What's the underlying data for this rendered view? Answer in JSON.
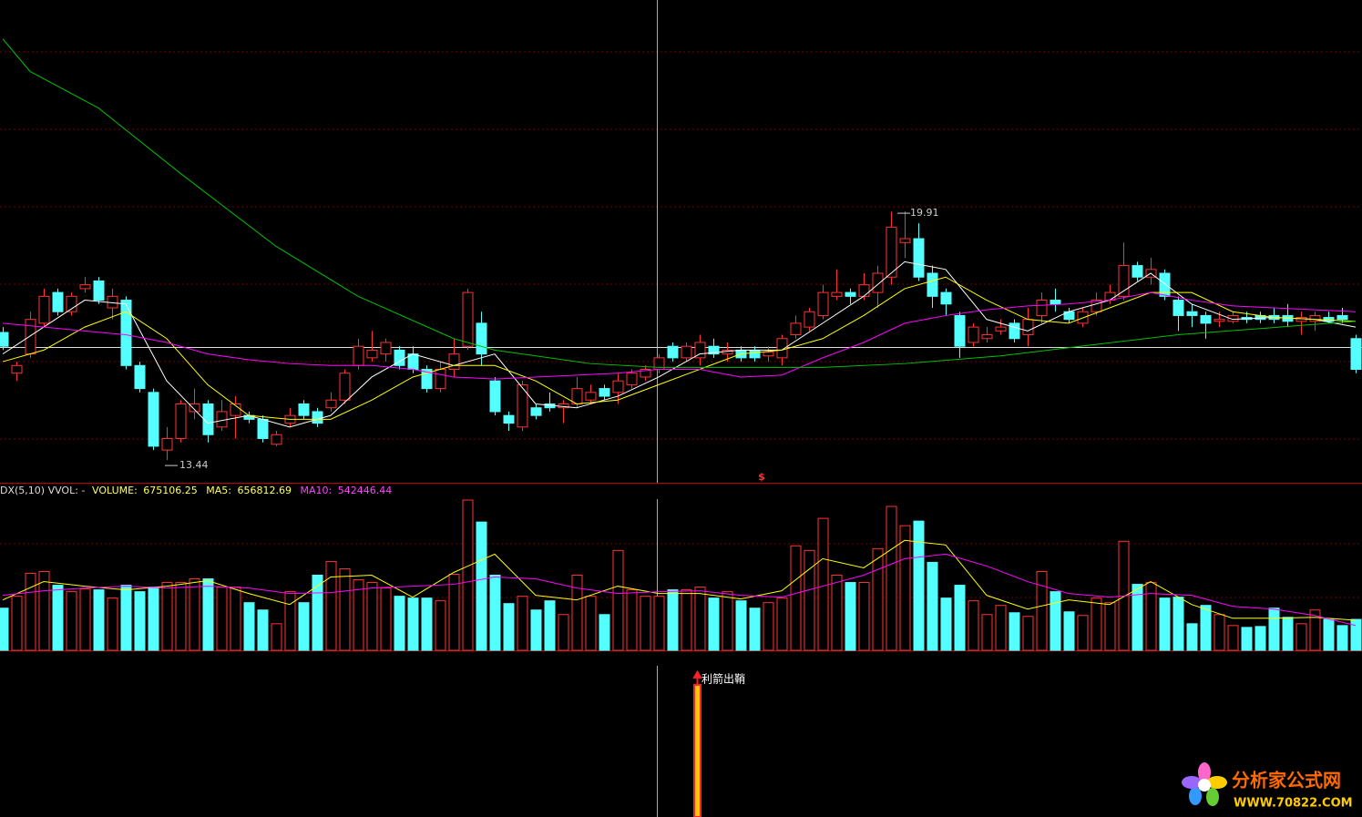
{
  "chart_data": {
    "type": "candlestick",
    "up_color": "#ff3232",
    "down_color": "#54ffff",
    "ylim": [
      12.85,
      25.41
    ],
    "ohlc": [
      [
        16.76,
        16.9,
        16.3,
        16.4
      ],
      [
        15.7,
        16.0,
        15.5,
        15.9
      ],
      [
        16.2,
        17.3,
        16.1,
        17.1
      ],
      [
        17.0,
        17.9,
        16.9,
        17.7
      ],
      [
        17.8,
        17.9,
        17.2,
        17.3
      ],
      [
        17.3,
        17.8,
        17.2,
        17.7
      ],
      [
        17.9,
        18.2,
        17.8,
        18.0
      ],
      [
        18.1,
        18.2,
        17.5,
        17.6
      ],
      [
        17.4,
        17.9,
        17.1,
        17.7
      ],
      [
        17.6,
        17.7,
        15.8,
        15.9
      ],
      [
        15.9,
        16.0,
        15.2,
        15.3
      ],
      [
        15.2,
        15.3,
        13.7,
        13.8
      ],
      [
        13.7,
        14.3,
        13.44,
        14.0
      ],
      [
        14.0,
        15.0,
        13.9,
        14.9
      ],
      [
        14.7,
        15.3,
        14.5,
        14.9
      ],
      [
        14.9,
        15.0,
        13.9,
        14.1
      ],
      [
        14.3,
        15.0,
        14.2,
        14.7
      ],
      [
        14.6,
        15.1,
        14.0,
        14.9
      ],
      [
        14.6,
        14.7,
        14.4,
        14.5
      ],
      [
        14.5,
        14.6,
        13.9,
        14.0
      ],
      [
        13.85,
        14.2,
        13.8,
        14.1
      ],
      [
        14.4,
        14.8,
        14.3,
        14.6
      ],
      [
        14.9,
        15.0,
        14.5,
        14.6
      ],
      [
        14.7,
        14.8,
        14.3,
        14.4
      ],
      [
        14.8,
        15.2,
        14.7,
        15.0
      ],
      [
        15.0,
        15.8,
        14.9,
        15.7
      ],
      [
        15.9,
        16.6,
        15.8,
        16.4
      ],
      [
        16.1,
        16.8,
        16.0,
        16.3
      ],
      [
        16.2,
        16.6,
        16.0,
        16.5
      ],
      [
        16.3,
        16.4,
        15.8,
        15.9
      ],
      [
        16.2,
        16.4,
        15.7,
        15.8
      ],
      [
        15.8,
        15.9,
        15.2,
        15.3
      ],
      [
        15.3,
        16.0,
        15.2,
        15.8
      ],
      [
        15.8,
        16.6,
        15.6,
        16.2
      ],
      [
        16.4,
        17.9,
        16.3,
        17.8
      ],
      [
        17.0,
        17.3,
        15.9,
        16.2
      ],
      [
        15.5,
        15.6,
        14.6,
        14.7
      ],
      [
        14.6,
        14.7,
        14.2,
        14.4
      ],
      [
        14.3,
        15.5,
        14.2,
        15.4
      ],
      [
        14.8,
        14.9,
        14.5,
        14.6
      ],
      [
        14.9,
        15.2,
        14.7,
        14.8
      ],
      [
        14.8,
        15.0,
        14.4,
        14.9
      ],
      [
        14.9,
        15.6,
        14.8,
        15.3
      ],
      [
        15.0,
        15.4,
        14.9,
        15.2
      ],
      [
        15.3,
        15.4,
        15.0,
        15.1
      ],
      [
        15.2,
        15.7,
        14.9,
        15.5
      ],
      [
        15.4,
        15.8,
        15.3,
        15.7
      ],
      [
        15.6,
        15.9,
        15.5,
        15.8
      ],
      [
        15.8,
        16.2,
        15.7,
        16.1
      ],
      [
        16.4,
        16.5,
        16.0,
        16.1
      ],
      [
        16.1,
        16.5,
        16.0,
        16.4
      ],
      [
        16.1,
        16.7,
        15.9,
        16.5
      ],
      [
        16.4,
        16.6,
        16.1,
        16.2
      ],
      [
        16.2,
        16.5,
        16.0,
        16.3
      ],
      [
        16.3,
        16.4,
        16.0,
        16.1
      ],
      [
        16.3,
        16.4,
        16.0,
        16.1
      ],
      [
        16.15,
        16.4,
        16.0,
        16.25
      ],
      [
        16.1,
        16.7,
        15.9,
        16.6
      ],
      [
        16.7,
        17.2,
        16.6,
        17.0
      ],
      [
        16.9,
        17.4,
        16.8,
        17.3
      ],
      [
        17.2,
        18.0,
        17.1,
        17.8
      ],
      [
        17.7,
        18.4,
        17.6,
        17.8
      ],
      [
        17.8,
        17.9,
        17.5,
        17.7
      ],
      [
        17.7,
        18.3,
        17.6,
        18.0
      ],
      [
        17.8,
        18.5,
        17.4,
        18.3
      ],
      [
        18.2,
        19.9,
        18.0,
        19.5
      ],
      [
        19.1,
        19.91,
        18.7,
        19.2
      ],
      [
        19.2,
        19.6,
        18.1,
        18.2
      ],
      [
        18.3,
        18.5,
        17.4,
        17.7
      ],
      [
        17.8,
        17.9,
        17.2,
        17.5
      ],
      [
        17.2,
        17.3,
        16.1,
        16.4
      ],
      [
        16.5,
        17.0,
        16.4,
        16.9
      ],
      [
        16.6,
        16.9,
        16.5,
        16.7
      ],
      [
        16.8,
        17.1,
        16.7,
        16.9
      ],
      [
        17.0,
        17.1,
        16.5,
        16.6
      ],
      [
        16.7,
        17.4,
        16.4,
        17.1
      ],
      [
        17.2,
        17.8,
        17.0,
        17.6
      ],
      [
        17.6,
        17.9,
        17.3,
        17.5
      ],
      [
        17.3,
        17.4,
        17.0,
        17.1
      ],
      [
        17.0,
        17.4,
        16.9,
        17.3
      ],
      [
        17.3,
        17.8,
        17.2,
        17.6
      ],
      [
        17.6,
        18.0,
        17.5,
        17.8
      ],
      [
        17.7,
        19.1,
        17.6,
        18.5
      ],
      [
        18.5,
        18.6,
        18.1,
        18.2
      ],
      [
        18.2,
        18.7,
        18.0,
        18.4
      ],
      [
        18.3,
        18.4,
        17.6,
        17.7
      ],
      [
        17.6,
        17.7,
        16.8,
        17.2
      ],
      [
        17.3,
        17.5,
        16.9,
        17.2
      ],
      [
        17.2,
        17.3,
        16.6,
        17.0
      ],
      [
        17.05,
        17.3,
        16.9,
        17.1
      ],
      [
        17.05,
        17.3,
        17.0,
        17.2
      ],
      [
        17.15,
        17.3,
        17.0,
        17.1
      ],
      [
        17.2,
        17.3,
        17.0,
        17.1
      ],
      [
        17.2,
        17.4,
        17.0,
        17.1
      ],
      [
        17.2,
        17.5,
        16.9,
        17.05
      ],
      [
        17.05,
        17.3,
        16.7,
        17.15
      ],
      [
        17.05,
        17.3,
        16.8,
        17.2
      ],
      [
        17.15,
        17.3,
        17.0,
        17.05
      ],
      [
        17.2,
        17.4,
        17.0,
        17.1
      ],
      [
        16.6,
        16.7,
        15.7,
        15.8
      ]
    ],
    "lines": [
      {
        "color": "#ffffff",
        "x": [
          0,
          3,
          6,
          9,
          12,
          15,
          18,
          21,
          24,
          27,
          30,
          33,
          36,
          39,
          42,
          45,
          48,
          51,
          54,
          57,
          60,
          63,
          66,
          69,
          72,
          75,
          78,
          81,
          84,
          87,
          90,
          93,
          96,
          99
        ],
        "values": [
          16.2,
          16.9,
          17.6,
          17.5,
          15.5,
          14.4,
          14.6,
          14.3,
          14.6,
          15.6,
          16.2,
          15.9,
          16.2,
          14.9,
          14.8,
          15.1,
          15.6,
          16.2,
          16.3,
          16.3,
          17.0,
          17.7,
          18.6,
          18.4,
          17.1,
          16.8,
          17.3,
          17.6,
          18.3,
          17.5,
          17.1,
          17.15,
          17.1,
          16.9
        ]
      },
      {
        "color": "#ffff00",
        "x": [
          0,
          3,
          6,
          9,
          12,
          15,
          18,
          21,
          24,
          27,
          30,
          33,
          36,
          39,
          42,
          45,
          48,
          51,
          54,
          57,
          60,
          63,
          66,
          69,
          72,
          75,
          78,
          81,
          84,
          87,
          90,
          93,
          96,
          99
        ],
        "values": [
          16.0,
          16.3,
          16.9,
          17.3,
          16.6,
          15.4,
          14.6,
          14.5,
          14.5,
          15.0,
          15.6,
          15.9,
          15.9,
          15.5,
          14.9,
          15.0,
          15.4,
          15.8,
          16.2,
          16.3,
          16.6,
          17.2,
          17.9,
          18.2,
          17.6,
          17.1,
          17.0,
          17.4,
          17.8,
          17.8,
          17.3,
          17.15,
          17.1,
          17.05
        ]
      },
      {
        "color": "#ff00ff",
        "x": [
          0,
          3,
          6,
          9,
          12,
          15,
          18,
          21,
          24,
          27,
          30,
          33,
          36,
          39,
          42,
          45,
          48,
          51,
          54,
          57,
          60,
          63,
          66,
          69,
          72,
          75,
          78,
          81,
          84,
          87,
          90,
          93,
          96,
          99
        ],
        "values": [
          17.0,
          16.9,
          16.8,
          16.7,
          16.5,
          16.2,
          16.05,
          15.95,
          15.9,
          15.9,
          15.8,
          15.6,
          15.55,
          15.6,
          15.65,
          15.7,
          15.8,
          15.8,
          15.6,
          15.65,
          16.1,
          16.5,
          17.0,
          17.2,
          17.35,
          17.45,
          17.5,
          17.6,
          17.8,
          17.6,
          17.45,
          17.4,
          17.35,
          17.3
        ]
      },
      {
        "color": "#00c000",
        "x": [
          0,
          2,
          7,
          13,
          20,
          26,
          33,
          36,
          43,
          48,
          60,
          66,
          73,
          80,
          86,
          99
        ],
        "values": [
          24.4,
          23.55,
          22.6,
          20.9,
          19.0,
          17.7,
          16.6,
          16.3,
          15.95,
          15.85,
          15.85,
          15.95,
          16.15,
          16.45,
          16.7,
          17.05
        ]
      }
    ],
    "marker": "$",
    "volume": {
      "header": "DX(5,10) VVOL: -",
      "labels": [
        "VOLUME:",
        "MA5:",
        "MA10:"
      ],
      "ylim": [
        0,
        3300000
      ],
      "values": [
        920000,
        1180000,
        1680000,
        1720000,
        1420000,
        1280000,
        1340000,
        1320000,
        1140000,
        1420000,
        1280000,
        1380000,
        1480000,
        1480000,
        1560000,
        1560000,
        1380000,
        1380000,
        1040000,
        880000,
        580000,
        1280000,
        1040000,
        1640000,
        1940000,
        1780000,
        1540000,
        1480000,
        1360000,
        1180000,
        1140000,
        1140000,
        1080000,
        1660000,
        3280000,
        2800000,
        1640000,
        1020000,
        1180000,
        880000,
        1080000,
        780000,
        1640000,
        1180000,
        780000,
        2180000,
        1320000,
        1180000,
        1180000,
        1320000,
        1320000,
        1380000,
        1140000,
        1280000,
        1080000,
        920000,
        1040000,
        1140000,
        2280000,
        2180000,
        2880000,
        1640000,
        1480000,
        1480000,
        2220000,
        3140000,
        2720000,
        2820000,
        1920000,
        1140000,
        1420000,
        1080000,
        780000,
        980000,
        820000,
        740000,
        1720000,
        1280000,
        840000,
        760000,
        1140000,
        1040000,
        2380000,
        1440000,
        1480000,
        1140000,
        1160000,
        580000,
        980000,
        780000,
        540000,
        500000,
        520000,
        920000,
        720000,
        580000,
        880000,
        680000,
        540000,
        675106.25
      ],
      "lines": [
        {
          "color": "#ffff00",
          "x": [
            0,
            3,
            6,
            9,
            12,
            15,
            18,
            21,
            24,
            27,
            30,
            33,
            36,
            39,
            42,
            45,
            48,
            51,
            54,
            57,
            60,
            63,
            66,
            69,
            72,
            75,
            78,
            81,
            84,
            87,
            90,
            93,
            96,
            99
          ],
          "values": [
            1100000,
            1500000,
            1400000,
            1320000,
            1400000,
            1520000,
            1240000,
            1000000,
            1600000,
            1640000,
            1160000,
            1700000,
            2100000,
            1200000,
            1100000,
            1400000,
            1240000,
            1240000,
            1120000,
            1300000,
            2000000,
            1800000,
            2400000,
            2300000,
            1200000,
            900000,
            1100000,
            1000000,
            1500000,
            1000000,
            700000,
            700000,
            720000,
            656812.69
          ]
        },
        {
          "color": "#ff00ff",
          "x": [
            0,
            3,
            6,
            9,
            12,
            15,
            18,
            21,
            24,
            27,
            30,
            33,
            36,
            39,
            42,
            45,
            48,
            51,
            54,
            57,
            60,
            63,
            66,
            69,
            72,
            75,
            78,
            81,
            84,
            87,
            90,
            93,
            96,
            99
          ],
          "values": [
            1200000,
            1300000,
            1360000,
            1400000,
            1360000,
            1400000,
            1360000,
            1240000,
            1260000,
            1360000,
            1400000,
            1440000,
            1600000,
            1560000,
            1360000,
            1240000,
            1280000,
            1300000,
            1200000,
            1160000,
            1400000,
            1640000,
            2000000,
            2100000,
            1840000,
            1500000,
            1240000,
            1160000,
            1240000,
            1200000,
            960000,
            900000,
            760000,
            542446.44
          ]
        }
      ]
    },
    "signal": {
      "ylim": [
        0,
        1.13
      ],
      "x": [
        51
      ],
      "values": [
        1
      ],
      "labels": [
        "利箭出鞘"
      ]
    }
  },
  "logo": {
    "title": "分析家公式网",
    "url": "WWW.70822.COM"
  }
}
